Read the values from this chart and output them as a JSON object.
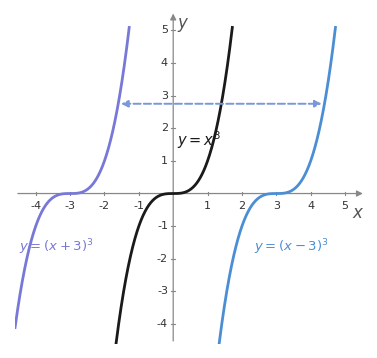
{
  "xlim": [
    -4.6,
    5.6
  ],
  "ylim": [
    -4.6,
    5.6
  ],
  "xticks": [
    -4,
    -3,
    -2,
    -1,
    1,
    2,
    3,
    4,
    5
  ],
  "yticks": [
    -4,
    -3,
    -2,
    -1,
    1,
    2,
    3,
    4,
    5
  ],
  "xlabel": "x",
  "ylabel": "y",
  "color_black": "#1a1a1a",
  "color_purple": "#7878D8",
  "color_blue": "#4B8ED4",
  "dashed_color": "#7898D8",
  "dashed_y": 2.75,
  "figsize": [
    3.77,
    3.58
  ],
  "dpi": 100
}
